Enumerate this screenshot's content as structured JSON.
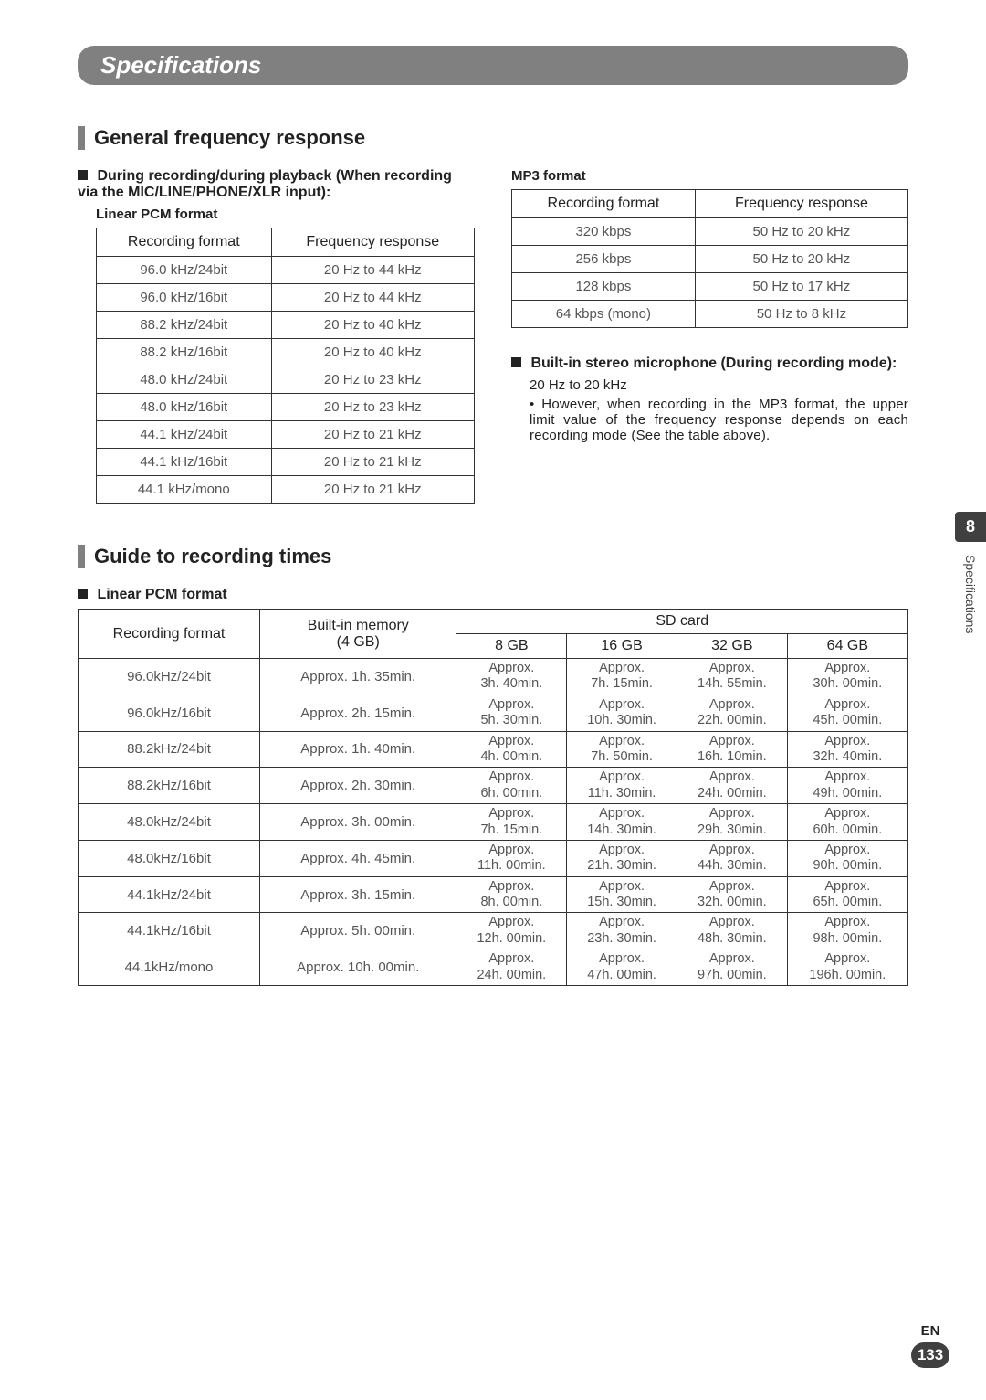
{
  "page": {
    "title": "Specifications",
    "chapter_num": "8",
    "side_label": "Specifications",
    "lang": "EN",
    "page_num": "133"
  },
  "s1": {
    "heading": "General frequency response",
    "left": {
      "sub": "During recording/during playback (When recording via the MIC/LINE/PHONE/XLR input):",
      "label": "Linear PCM format",
      "table": {
        "cols": [
          "Recording format",
          "Frequency response"
        ],
        "rows": [
          [
            "96.0 kHz/24bit",
            "20 Hz to 44 kHz"
          ],
          [
            "96.0 kHz/16bit",
            "20 Hz to 44 kHz"
          ],
          [
            "88.2 kHz/24bit",
            "20 Hz to 40 kHz"
          ],
          [
            "88.2 kHz/16bit",
            "20 Hz to 40 kHz"
          ],
          [
            "48.0 kHz/24bit",
            "20 Hz to 23 kHz"
          ],
          [
            "48.0 kHz/16bit",
            "20 Hz to 23 kHz"
          ],
          [
            "44.1 kHz/24bit",
            "20 Hz to 21 kHz"
          ],
          [
            "44.1 kHz/16bit",
            "20 Hz to 21 kHz"
          ],
          [
            "44.1 kHz/mono",
            "20 Hz to 21 kHz"
          ]
        ]
      }
    },
    "right": {
      "label": "MP3 format",
      "table": {
        "cols": [
          "Recording format",
          "Frequency response"
        ],
        "rows": [
          [
            "320 kbps",
            "50 Hz to 20 kHz"
          ],
          [
            "256 kbps",
            "50 Hz to 20 kHz"
          ],
          [
            "128 kbps",
            "50 Hz to 17 kHz"
          ],
          [
            "64 kbps (mono)",
            "50 Hz to 8 kHz"
          ]
        ]
      },
      "sub2": "Built-in stereo microphone (During recording mode):",
      "range": "20 Hz to 20 kHz",
      "note": "• However, when recording in the MP3 format, the upper limit value of the frequency response depends on each recording mode (See the table above)."
    }
  },
  "s2": {
    "heading": "Guide to recording times",
    "label": "Linear PCM format",
    "table": {
      "col0": "Recording format",
      "col1": "Built-in memory (4 GB)",
      "col_sd": "SD card",
      "sd_cols": [
        "8 GB",
        "16 GB",
        "32 GB",
        "64 GB"
      ],
      "rows": [
        {
          "fmt": "96.0kHz/24bit",
          "bi": "Approx. 1h. 35min.",
          "sd": [
            "Approx. 3h. 40min.",
            "Approx. 7h. 15min.",
            "Approx. 14h. 55min.",
            "Approx. 30h. 00min."
          ]
        },
        {
          "fmt": "96.0kHz/16bit",
          "bi": "Approx. 2h. 15min.",
          "sd": [
            "Approx. 5h. 30min.",
            "Approx. 10h. 30min.",
            "Approx. 22h. 00min.",
            "Approx. 45h. 00min."
          ]
        },
        {
          "fmt": "88.2kHz/24bit",
          "bi": "Approx. 1h. 40min.",
          "sd": [
            "Approx. 4h. 00min.",
            "Approx. 7h. 50min.",
            "Approx. 16h. 10min.",
            "Approx. 32h. 40min."
          ]
        },
        {
          "fmt": "88.2kHz/16bit",
          "bi": "Approx. 2h. 30min.",
          "sd": [
            "Approx. 6h. 00min.",
            "Approx. 11h. 30min.",
            "Approx. 24h. 00min.",
            "Approx. 49h. 00min."
          ]
        },
        {
          "fmt": "48.0kHz/24bit",
          "bi": "Approx. 3h. 00min.",
          "sd": [
            "Approx. 7h. 15min.",
            "Approx. 14h. 30min.",
            "Approx. 29h. 30min.",
            "Approx. 60h. 00min."
          ]
        },
        {
          "fmt": "48.0kHz/16bit",
          "bi": "Approx. 4h. 45min.",
          "sd": [
            "Approx. 11h. 00min.",
            "Approx. 21h. 30min.",
            "Approx. 44h. 30min.",
            "Approx. 90h. 00min."
          ]
        },
        {
          "fmt": "44.1kHz/24bit",
          "bi": "Approx. 3h. 15min.",
          "sd": [
            "Approx. 8h. 00min.",
            "Approx. 15h. 30min.",
            "Approx. 32h. 00min.",
            "Approx. 65h. 00min."
          ]
        },
        {
          "fmt": "44.1kHz/16bit",
          "bi": "Approx. 5h. 00min.",
          "sd": [
            "Approx. 12h. 00min.",
            "Approx. 23h. 30min.",
            "Approx. 48h. 30min.",
            "Approx. 98h. 00min."
          ]
        },
        {
          "fmt": "44.1kHz/mono",
          "bi": "Approx. 10h. 00min.",
          "sd": [
            "Approx. 24h. 00min.",
            "Approx. 47h. 00min.",
            "Approx. 97h. 00min.",
            "Approx. 196h. 00min."
          ]
        }
      ]
    }
  }
}
